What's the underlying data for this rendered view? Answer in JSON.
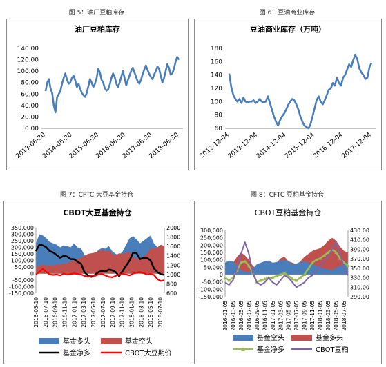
{
  "captions": {
    "fig5": "图 5：油厂豆粕库存",
    "fig6": "图 6：豆油商业库存",
    "fig7": "图 7：CFTC 大豆基金持仓",
    "fig8": "图 8：CFTC 豆粕基金持仓"
  },
  "chart_data": [
    {
      "type": "line",
      "title": "油厂豆粕库存",
      "ylim": [
        0,
        140
      ],
      "yticks": [
        "0.00",
        "20.00",
        "40.00",
        "60.00",
        "80.00",
        "100.00",
        "120.00",
        "140.00"
      ],
      "xticks": [
        "2013-06-30",
        "2014-06-30",
        "2015-06-30",
        "2016-06-30",
        "2017-06-30",
        "2018-06-30"
      ],
      "color": "#4a7ebb",
      "series": [
        {
          "values": [
            65,
            80,
            86,
            70,
            62,
            40,
            28,
            55,
            60,
            65,
            78,
            88,
            96,
            85,
            78,
            80,
            88,
            92,
            84,
            72,
            78,
            70,
            62,
            58,
            55,
            62,
            74,
            86,
            80,
            72,
            78,
            88,
            104,
            98,
            85,
            80,
            70,
            66,
            68,
            76,
            88,
            96,
            90,
            78,
            72,
            80,
            90,
            100,
            88,
            75,
            84,
            92,
            100,
            106,
            98,
            90,
            82,
            78,
            85,
            95,
            103,
            110,
            102,
            95,
            90,
            86,
            94,
            100,
            108,
            104,
            92,
            80,
            88,
            100,
            112,
            106,
            94,
            96,
            104,
            116,
            125,
            120
          ]
        }
      ]
    },
    {
      "type": "line",
      "title": "豆油商业库存（万吨）",
      "ylim": [
        60,
        180
      ],
      "yticks": [
        "60",
        "80",
        "100",
        "120",
        "140",
        "160",
        "180"
      ],
      "xticks": [
        "2012-12-04",
        "2013-12-04",
        "2014-12-04",
        "2015-12-04",
        "2016-12-04",
        "2017-12-04"
      ],
      "color": "#4a7ebb",
      "series": [
        {
          "values": [
            142,
            122,
            110,
            104,
            100,
            104,
            98,
            106,
            100,
            99,
            100,
            100,
            102,
            98,
            100,
            104,
            100,
            99,
            100,
            108,
            98,
            88,
            78,
            70,
            64,
            72,
            78,
            82,
            88,
            95,
            100,
            104,
            102,
            96,
            88,
            78,
            70,
            64,
            62,
            60,
            66,
            78,
            90,
            102,
            108,
            100,
            96,
            102,
            110,
            118,
            120,
            128,
            124,
            136,
            128,
            124,
            136,
            140,
            148,
            156,
            152,
            162,
            170,
            164,
            150,
            144,
            140,
            134,
            136,
            152,
            158
          ]
        }
      ]
    },
    {
      "type": "area",
      "title": "CBOT大豆基金持仓",
      "yticks_left": [
        "350,000",
        "300,000",
        "250,000",
        "200,000",
        "150,000",
        "100,000",
        "50,000",
        "0",
        "-50,000",
        "-100,000",
        "-150,000"
      ],
      "ylim_left": [
        -150000,
        350000
      ],
      "yticks_right": [
        "2000",
        "1800",
        "1600",
        "1400",
        "1200",
        "1000",
        "800",
        "600"
      ],
      "ylim_right": [
        600,
        2000
      ],
      "xticks": [
        "2016-05-10",
        "2016-07-10",
        "2016-09-10",
        "2016-11-10",
        "2017-01-10",
        "2017-03-10",
        "2017-05-10",
        "2017-07-10",
        "2017-09-10",
        "2017-11-10",
        "2018-01-10",
        "2018-03-10",
        "2018-05-10",
        "2018-07-10"
      ],
      "legend": [
        "基金多头",
        "基金空头",
        "基金净多",
        "CBOT大豆期价"
      ],
      "colors": {
        "long": "#4a7ebb",
        "short": "#c0504d",
        "net": "#000000",
        "price": "#ff0000"
      },
      "series": [
        {
          "name": "基金多头",
          "values": [
            230000,
            300000,
            290000,
            270000,
            240000,
            230000,
            220000,
            200000,
            215000,
            210000,
            200000,
            230000,
            200000,
            190000,
            140000,
            130000,
            135000,
            150000,
            180000,
            195000,
            190000,
            210000,
            170000,
            150000,
            140000,
            170000,
            220000,
            270000,
            285000,
            260000,
            230000,
            250000,
            270000,
            290000,
            230000,
            200000,
            210000,
            200000
          ]
        },
        {
          "name": "基金空头",
          "values": [
            50000,
            60000,
            70000,
            60000,
            65000,
            60000,
            70000,
            70000,
            75000,
            80000,
            90000,
            100000,
            110000,
            120000,
            135000,
            150000,
            155000,
            160000,
            170000,
            180000,
            170000,
            175000,
            150000,
            140000,
            155000,
            150000,
            160000,
            165000,
            130000,
            110000,
            120000,
            130000,
            150000,
            190000,
            190000,
            200000,
            220000,
            210000
          ]
        },
        {
          "name": "基金净多",
          "values": [
            170000,
            220000,
            215000,
            200000,
            170000,
            160000,
            140000,
            120000,
            135000,
            130000,
            110000,
            110000,
            90000,
            75000,
            10000,
            -15000,
            -25000,
            -10000,
            10000,
            20000,
            15000,
            30000,
            25000,
            10000,
            -20000,
            20000,
            60000,
            100000,
            160000,
            155000,
            110000,
            120000,
            120000,
            100000,
            40000,
            10000,
            -5000,
            -10000
          ]
        },
        {
          "name": "CBOT大豆期价",
          "values": [
            1000,
            1060,
            1120,
            1050,
            1000,
            990,
            1000,
            980,
            1020,
            1000,
            1010,
            1020,
            1010,
            1000,
            970,
            950,
            980,
            970,
            1000,
            1010,
            980,
            950,
            940,
            970,
            1000,
            1010,
            1000,
            980,
            1020,
            1040,
            1050,
            1030,
            1000,
            1010,
            990,
            900,
            860,
            880
          ]
        }
      ]
    },
    {
      "type": "area",
      "title": "CBOT豆粕基金持仓",
      "yticks_left": [
        "300,000",
        "250,000",
        "200,000",
        "150,000",
        "100,000",
        "50,000",
        "0",
        "-50,000",
        "-100,000",
        "-150,000"
      ],
      "ylim_left": [
        -150000,
        300000
      ],
      "yticks_right": [
        "430.00",
        "410.00",
        "390.00",
        "370.00",
        "350.00",
        "330.00",
        "310.00",
        "290.00"
      ],
      "ylim_right": [
        290,
        430
      ],
      "xticks": [
        "2016-01-05",
        "2016-03-05",
        "2016-05-05",
        "2016-07-05",
        "2016-09-05",
        "2016-11-05",
        "2017-01-05",
        "2017-03-05",
        "2017-05-05",
        "2017-07-05",
        "2017-09-05",
        "2017-11-05",
        "2018-01-05",
        "2018-03-05",
        "2018-05-05",
        "2018-07-05"
      ],
      "legend": [
        "基金空头",
        "基金多头",
        "基金净多",
        "CBOT豆粕"
      ],
      "colors": {
        "short": "#4a7ebb",
        "long": "#c0504d",
        "net": "#9bbb59",
        "price": "#8064a2"
      },
      "series": [
        {
          "name": "基金空头",
          "values": [
            80000,
            95000,
            90000,
            60000,
            30000,
            20000,
            15000,
            40000,
            70000,
            80000,
            90000,
            95000,
            80000,
            85000,
            95000,
            100000,
            90000,
            70000,
            75000,
            85000,
            90000,
            80000,
            70000,
            60000,
            50000,
            40000,
            35000,
            30000,
            45000,
            60000,
            70000,
            90000
          ]
        },
        {
          "name": "基金多头",
          "values": [
            70000,
            60000,
            80000,
            120000,
            150000,
            130000,
            100000,
            60000,
            40000,
            50000,
            60000,
            80000,
            70000,
            80000,
            110000,
            120000,
            90000,
            80000,
            70000,
            90000,
            120000,
            140000,
            160000,
            170000,
            180000,
            200000,
            230000,
            250000,
            230000,
            190000,
            160000,
            150000
          ]
        },
        {
          "name": "基金净多",
          "values": [
            -20000,
            -40000,
            -20000,
            30000,
            80000,
            90000,
            60000,
            10000,
            -50000,
            -40000,
            -30000,
            -20000,
            -20000,
            -10000,
            0,
            10000,
            -10000,
            -30000,
            -40000,
            -20000,
            0,
            40000,
            80000,
            100000,
            110000,
            130000,
            150000,
            170000,
            150000,
            110000,
            80000,
            60000
          ]
        },
        {
          "name": "CBOT豆粕",
          "values": [
            320,
            315,
            325,
            350,
            380,
            405,
            380,
            340,
            320,
            315,
            320,
            330,
            320,
            315,
            325,
            335,
            330,
            320,
            310,
            315,
            320,
            330,
            335,
            345,
            355,
            365,
            375,
            390,
            405,
            380,
            350,
            335
          ]
        }
      ]
    }
  ]
}
